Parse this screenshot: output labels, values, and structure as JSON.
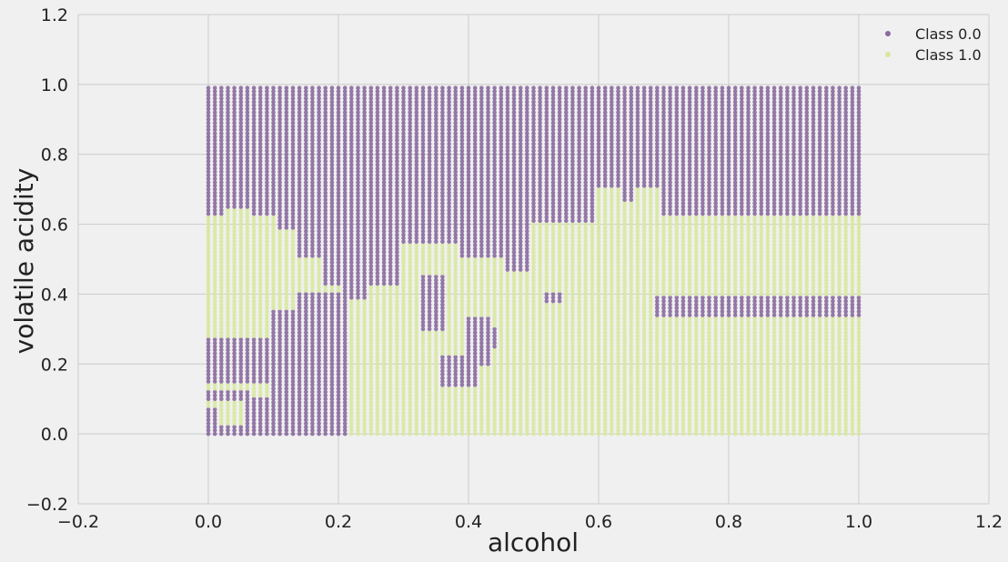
{
  "chart_data": {
    "type": "scatter",
    "xlabel": "alcohol",
    "ylabel": "volatile acidity",
    "xlim": [
      -0.2,
      1.2
    ],
    "ylim": [
      -0.2,
      1.2
    ],
    "xticks": [
      "−0.2",
      "0.0",
      "0.2",
      "0.4",
      "0.6",
      "0.8",
      "1.0",
      "1.2"
    ],
    "yticks": [
      "−0.2",
      "0.0",
      "0.2",
      "0.4",
      "0.6",
      "0.8",
      "1.0",
      "1.2"
    ],
    "grid": true,
    "legend_position": "top-right",
    "point_grid": {
      "x_start": 0.0,
      "x_end": 1.0,
      "x_count": 101,
      "y_start": 0.0,
      "y_end": 0.99,
      "y_count": 100
    },
    "series": [
      {
        "name": "Class 0.0",
        "color": "#8a6a9f"
      },
      {
        "name": "Class 1.0",
        "color": "#d7e79c"
      }
    ],
    "class1_regions": [
      {
        "x": [
          0.0,
          0.1
        ],
        "y": [
          0.0,
          0.62
        ]
      },
      {
        "x": [
          0.03,
          0.06
        ],
        "y": [
          0.62,
          0.64
        ]
      },
      {
        "x": [
          0.1,
          0.13
        ],
        "y": [
          0.42,
          0.58
        ]
      },
      {
        "x": [
          0.14,
          0.17
        ],
        "y": [
          0.42,
          0.5
        ]
      },
      {
        "x": [
          0.1,
          0.2
        ],
        "y": [
          0.35,
          0.42
        ]
      },
      {
        "x": [
          0.2,
          0.3
        ],
        "y": [
          0.0,
          0.38
        ]
      },
      {
        "x": [
          0.25,
          0.3
        ],
        "y": [
          0.38,
          0.42
        ]
      },
      {
        "x": [
          0.3,
          0.38
        ],
        "y": [
          0.0,
          0.54
        ]
      },
      {
        "x": [
          0.38,
          0.45
        ],
        "y": [
          0.0,
          0.5
        ]
      },
      {
        "x": [
          0.45,
          0.5
        ],
        "y": [
          0.0,
          0.46
        ]
      },
      {
        "x": [
          0.5,
          0.6
        ],
        "y": [
          0.0,
          0.6
        ]
      },
      {
        "x": [
          0.6,
          0.63
        ],
        "y": [
          0.0,
          0.7
        ]
      },
      {
        "x": [
          0.64,
          0.66
        ],
        "y": [
          0.0,
          0.66
        ]
      },
      {
        "x": [
          0.66,
          0.69
        ],
        "y": [
          0.0,
          0.7
        ]
      },
      {
        "x": [
          0.69,
          1.0
        ],
        "y": [
          0.0,
          0.34
        ]
      },
      {
        "x": [
          0.69,
          1.0
        ],
        "y": [
          0.39,
          0.62
        ]
      }
    ],
    "class0_regions": [
      {
        "x": [
          0.0,
          0.1
        ],
        "y": [
          0.0,
          0.02
        ]
      },
      {
        "x": [
          0.0,
          0.1
        ],
        "y": [
          0.15,
          0.27
        ]
      },
      {
        "x": [
          0.0,
          0.06
        ],
        "y": [
          0.1,
          0.12
        ]
      },
      {
        "x": [
          0.0,
          0.01
        ],
        "y": [
          0.03,
          0.07
        ]
      },
      {
        "x": [
          0.06,
          0.1
        ],
        "y": [
          0.03,
          0.1
        ]
      },
      {
        "x": [
          0.1,
          0.2
        ],
        "y": [
          0.0,
          0.35
        ]
      },
      {
        "x": [
          0.14,
          0.2
        ],
        "y": [
          0.35,
          0.4
        ]
      },
      {
        "x": [
          0.2,
          0.21
        ],
        "y": [
          0.0,
          0.4
        ]
      },
      {
        "x": [
          0.33,
          0.36
        ],
        "y": [
          0.3,
          0.45
        ]
      },
      {
        "x": [
          0.4,
          0.43
        ],
        "y": [
          0.2,
          0.33
        ]
      },
      {
        "x": [
          0.36,
          0.41
        ],
        "y": [
          0.14,
          0.22
        ]
      },
      {
        "x": [
          0.4,
          0.44
        ],
        "y": [
          0.25,
          0.3
        ]
      },
      {
        "x": [
          0.52,
          0.54
        ],
        "y": [
          0.38,
          0.4
        ]
      },
      {
        "x": [
          0.69,
          1.0
        ],
        "y": [
          0.34,
          0.39
        ]
      }
    ]
  }
}
